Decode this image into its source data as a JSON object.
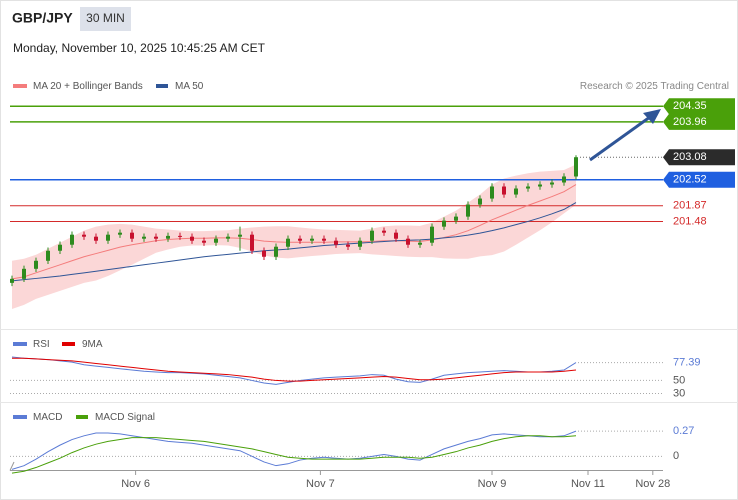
{
  "header": {
    "symbol": "GBP/JPY",
    "interval": "30 MIN",
    "datetime": "Monday, November 10, 2025 10:45:25 AM CET",
    "credit": "Research © 2025 Trading Central"
  },
  "chart_data": [
    {
      "type": "candlestick",
      "up_color": "#2e8b1e",
      "down_color": "#c8102e",
      "ylim": [
        198.9,
        204.63
      ],
      "open": [
        199.95,
        200.05,
        200.3,
        200.5,
        200.75,
        200.9,
        201.15,
        201.1,
        201.0,
        201.15,
        201.2,
        201.05,
        201.1,
        201.05,
        201.12,
        201.1,
        201.0,
        200.95,
        201.05,
        201.1,
        201.15,
        200.75,
        200.6,
        200.85,
        201.05,
        201.0,
        201.05,
        201.0,
        200.9,
        200.85,
        201.0,
        201.25,
        201.2,
        201.05,
        200.9,
        200.95,
        201.35,
        201.5,
        201.6,
        201.9,
        202.05,
        202.35,
        202.15,
        202.3,
        202.35,
        202.4,
        202.45,
        202.6
      ],
      "high": [
        200.13,
        200.38,
        200.58,
        200.83,
        200.98,
        201.23,
        201.23,
        201.18,
        201.23,
        201.28,
        201.28,
        201.18,
        201.18,
        201.2,
        201.2,
        201.18,
        201.08,
        201.13,
        201.18,
        201.35,
        201.23,
        200.83,
        200.93,
        201.13,
        201.13,
        201.13,
        201.13,
        201.08,
        200.98,
        201.08,
        201.33,
        201.33,
        201.28,
        201.13,
        201.03,
        201.43,
        201.58,
        201.68,
        201.98,
        202.13,
        202.43,
        202.43,
        202.38,
        202.43,
        202.48,
        202.53,
        202.68,
        203.13
      ],
      "low": [
        199.87,
        199.97,
        200.22,
        200.42,
        200.67,
        200.82,
        201.02,
        200.92,
        200.92,
        201.07,
        200.97,
        200.97,
        200.97,
        200.97,
        201.02,
        200.92,
        200.87,
        200.87,
        200.97,
        200.75,
        200.67,
        200.52,
        200.52,
        200.77,
        200.92,
        200.92,
        200.92,
        200.82,
        200.77,
        200.77,
        200.92,
        201.12,
        200.97,
        200.82,
        200.82,
        200.87,
        201.27,
        201.42,
        201.52,
        201.82,
        201.97,
        202.07,
        202.07,
        202.22,
        202.27,
        202.32,
        202.37,
        202.52
      ],
      "close": [
        200.05,
        200.3,
        200.5,
        200.75,
        200.9,
        201.15,
        201.1,
        201.0,
        201.15,
        201.2,
        201.05,
        201.1,
        201.05,
        201.12,
        201.1,
        201.0,
        200.95,
        201.05,
        201.1,
        201.15,
        200.75,
        200.6,
        200.85,
        201.05,
        201.0,
        201.05,
        201.0,
        200.9,
        200.85,
        201.0,
        201.25,
        201.2,
        201.05,
        200.9,
        200.95,
        201.35,
        201.5,
        201.6,
        201.9,
        202.05,
        202.35,
        202.15,
        202.3,
        202.35,
        202.4,
        202.45,
        202.6,
        203.08
      ],
      "last_color": "#2b2b2b",
      "series": [
        {
          "name": "MA 20 + Bollinger Bands",
          "color": "#f47c7c",
          "band_color": "#fbd7d7",
          "values": [
            200.05,
            200.1,
            200.2,
            200.3,
            200.4,
            200.5,
            200.6,
            200.68,
            200.76,
            200.84,
            200.9,
            200.95,
            201.0,
            201.03,
            201.05,
            201.06,
            201.06,
            201.07,
            201.07,
            201.06,
            201.03,
            200.99,
            200.97,
            200.96,
            200.96,
            200.96,
            200.96,
            200.97,
            200.97,
            200.97,
            200.98,
            201.0,
            201.0,
            200.99,
            200.98,
            201.02,
            201.08,
            201.15,
            201.25,
            201.38,
            201.52,
            201.64,
            201.76,
            201.88,
            201.99,
            202.1,
            202.22,
            202.4
          ],
          "upper": [
            200.5,
            200.55,
            200.65,
            200.8,
            200.95,
            201.1,
            201.25,
            201.35,
            201.4,
            201.42,
            201.4,
            201.35,
            201.3,
            201.28,
            201.25,
            201.24,
            201.24,
            201.25,
            201.26,
            201.3,
            201.33,
            201.35,
            201.36,
            201.36,
            201.33,
            201.3,
            201.28,
            201.27,
            201.26,
            201.25,
            201.3,
            201.36,
            201.38,
            201.38,
            201.37,
            201.45,
            201.6,
            201.75,
            201.95,
            202.15,
            202.4,
            202.55,
            202.62,
            202.68,
            202.72,
            202.74,
            202.76,
            202.9
          ],
          "lower": [
            199.3,
            199.4,
            199.55,
            199.65,
            199.75,
            199.85,
            199.95,
            200.01,
            200.12,
            200.26,
            200.4,
            200.55,
            200.7,
            200.78,
            200.85,
            200.88,
            200.88,
            200.89,
            200.88,
            200.82,
            200.73,
            200.63,
            200.58,
            200.56,
            200.59,
            200.62,
            200.64,
            200.67,
            200.68,
            200.69,
            200.66,
            200.64,
            200.62,
            200.6,
            200.59,
            200.59,
            200.56,
            200.55,
            200.55,
            200.61,
            200.64,
            200.73,
            200.9,
            201.08,
            201.26,
            201.46,
            201.68,
            201.9
          ]
        },
        {
          "name": "MA 50",
          "color": "#2f5597",
          "values": [
            200.0,
            200.03,
            200.06,
            200.09,
            200.12,
            200.16,
            200.2,
            200.24,
            200.28,
            200.32,
            200.36,
            200.4,
            200.44,
            200.48,
            200.52,
            200.56,
            200.6,
            200.63,
            200.66,
            200.69,
            200.72,
            200.75,
            200.77,
            200.79,
            200.82,
            200.85,
            200.88,
            200.9,
            200.92,
            200.94,
            200.96,
            200.98,
            201.0,
            201.01,
            201.02,
            201.04,
            201.07,
            201.1,
            201.14,
            201.19,
            201.25,
            201.32,
            201.4,
            201.48,
            201.57,
            201.67,
            201.78,
            201.95
          ]
        }
      ],
      "levels": [
        {
          "value": 204.35,
          "color": "#4aa00a",
          "tag": true
        },
        {
          "value": 203.96,
          "color": "#4aa00a",
          "tag": true
        },
        {
          "value": 202.52,
          "color": "#1f5fe0",
          "tag": true
        },
        {
          "value": 201.87,
          "color": "#d42a2a",
          "tag": false
        },
        {
          "value": 201.48,
          "color": "#d42a2a",
          "tag": false
        }
      ]
    },
    {
      "type": "line",
      "ylim": [
        20,
        112
      ],
      "yticks": [
        30,
        50
      ],
      "series": [
        {
          "name": "RSI",
          "color": "#5b7bd5",
          "values": [
            86,
            84,
            83,
            82,
            80,
            78,
            74,
            72,
            70,
            68,
            66,
            64,
            63,
            62,
            62,
            61,
            60,
            58,
            56,
            54,
            50,
            46,
            44,
            47,
            50,
            52,
            54,
            55,
            56,
            57,
            59,
            58,
            52,
            48,
            47,
            52,
            58,
            60,
            62,
            63,
            64,
            65,
            64,
            63,
            63,
            64,
            66,
            77.39
          ]
        },
        {
          "name": "9MA",
          "color": "#e00000",
          "values": [
            84,
            84,
            83,
            82,
            81,
            80,
            78,
            76,
            74,
            72,
            70,
            68,
            66,
            64,
            63,
            62,
            61,
            60,
            59,
            57,
            55,
            52,
            50,
            49,
            49,
            50,
            51,
            52,
            53,
            54,
            55,
            56,
            55,
            53,
            51,
            51,
            52,
            54,
            56,
            58,
            60,
            62,
            63,
            63,
            63,
            63,
            64,
            66
          ]
        }
      ]
    },
    {
      "type": "line",
      "ylim": [
        -0.2,
        0.55
      ],
      "yticks": [
        0
      ],
      "xlim": [
        0,
        55
      ],
      "xticks": [
        {
          "value": 10.3,
          "label": "Nov 6"
        },
        {
          "value": 25.7,
          "label": "Nov 7"
        },
        {
          "value": 40,
          "label": "Nov 9"
        },
        {
          "value": 48,
          "label": "Nov 11"
        },
        {
          "value": 53.4,
          "label": "Nov 28"
        }
      ],
      "series": [
        {
          "name": "MACD",
          "color": "#5b7bd5",
          "values": [
            -0.14,
            -0.1,
            -0.03,
            0.05,
            0.12,
            0.18,
            0.22,
            0.25,
            0.25,
            0.24,
            0.22,
            0.2,
            0.18,
            0.16,
            0.15,
            0.14,
            0.12,
            0.1,
            0.08,
            0.06,
            0.0,
            -0.06,
            -0.1,
            -0.08,
            -0.04,
            -0.02,
            -0.01,
            -0.02,
            -0.03,
            -0.02,
            0.0,
            0.02,
            0.0,
            -0.03,
            -0.04,
            0.02,
            0.08,
            0.12,
            0.16,
            0.19,
            0.23,
            0.24,
            0.23,
            0.22,
            0.21,
            0.21,
            0.22,
            0.27
          ]
        },
        {
          "name": "MACD Signal",
          "color": "#4aa00a",
          "values": [
            -0.18,
            -0.16,
            -0.12,
            -0.07,
            -0.02,
            0.04,
            0.09,
            0.13,
            0.16,
            0.18,
            0.2,
            0.2,
            0.2,
            0.19,
            0.18,
            0.17,
            0.16,
            0.14,
            0.12,
            0.1,
            0.08,
            0.05,
            0.02,
            -0.01,
            -0.02,
            -0.03,
            -0.03,
            -0.03,
            -0.03,
            -0.03,
            -0.02,
            -0.01,
            -0.01,
            -0.01,
            -0.02,
            -0.01,
            0.02,
            0.05,
            0.09,
            0.12,
            0.16,
            0.19,
            0.21,
            0.22,
            0.22,
            0.21,
            0.21,
            0.22
          ]
        }
      ]
    }
  ]
}
